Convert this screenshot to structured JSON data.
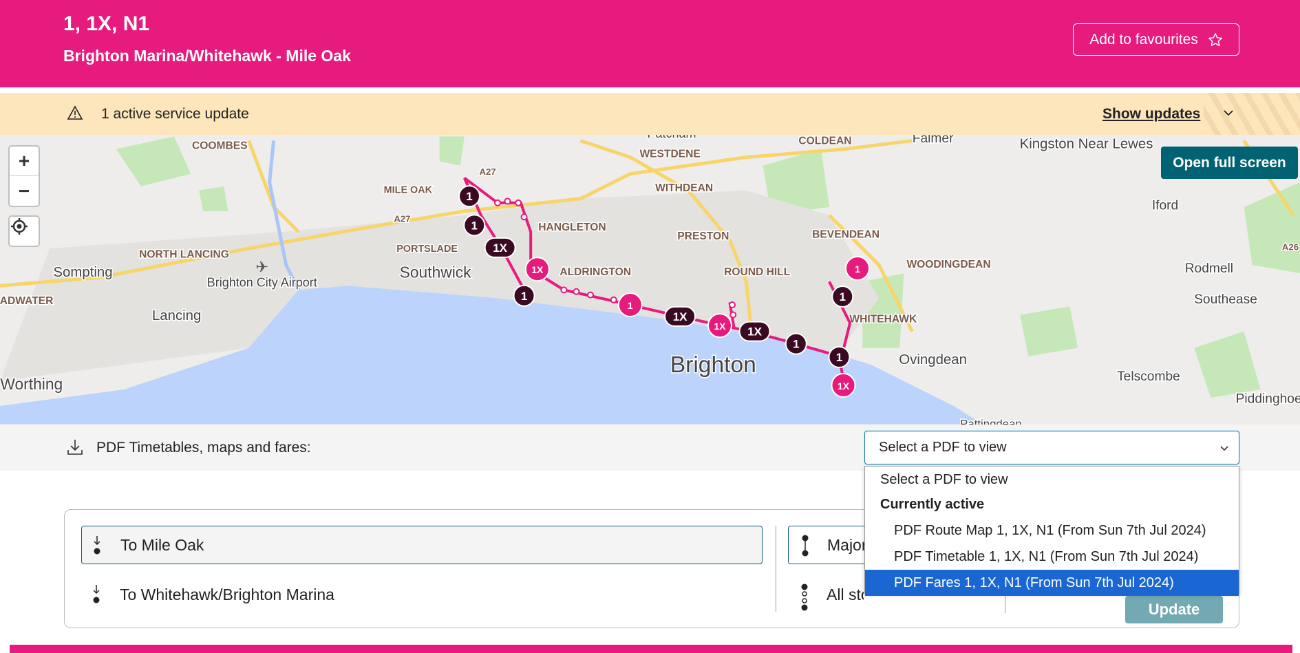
{
  "header": {
    "title": "1, 1X, N1",
    "subtitle": "Brighton Marina/Whitehawk - Mile Oak",
    "favourite_label": "Add to favourites",
    "favourite_icon": "star-outline-icon"
  },
  "alert": {
    "text": "1 active service update",
    "toggle_label": "Show updates",
    "icon": "warning-triangle-icon"
  },
  "map": {
    "fullscreen_label": "Open full screen",
    "zoom_in": "+",
    "zoom_out": "−",
    "places": [
      "Patcham",
      "COLDEAN",
      "Falmer",
      "Kingston Near Lewes",
      "COOMBES",
      "WESTDENE",
      "A27",
      "A27",
      "WITHDEAN",
      "Iford",
      "HANGLETON",
      "PRESTON",
      "BEVENDEAN",
      "NORTH LANCING",
      "Sompting",
      "Brighton City Airport",
      "Southwick",
      "ALDRINGTON",
      "ROUND HILL",
      "WOODINGDEAN",
      "Rodmell",
      "A26",
      "ADWATER",
      "Lancing",
      "Southease",
      "WHITEHAWK",
      "Ovingdean",
      "Brighton",
      "Telscombe",
      "Worthing",
      "Piddinghoe",
      "Pattingdean",
      "MILE OAK",
      "PORTSLADE"
    ],
    "markers": [
      "1",
      "1",
      "1X",
      "1X",
      "1",
      "1",
      "1X",
      "1X",
      "1X",
      "1",
      "1",
      "1",
      "1X",
      "1"
    ],
    "colors": {
      "route": "#e71b7d",
      "marker_dark": "#3a0a22",
      "sea": "#bcd3fb",
      "land": "#eeedeb",
      "green": "#c6e8b8",
      "road": "#f7d56b"
    }
  },
  "pdf": {
    "label": "PDF Timetables, maps and fares:",
    "select_value": "Select a PDF to view",
    "options": {
      "placeholder": "Select a PDF to view",
      "group": "Currently active",
      "items": [
        "PDF Route Map 1, 1X, N1 (From Sun 7th Jul 2024)",
        "PDF Timetable 1, 1X, N1 (From Sun 7th Jul 2024)",
        "PDF Fares 1, 1X, N1 (From Sun 7th Jul 2024)"
      ],
      "selected_index": 2
    }
  },
  "directions": [
    {
      "label": "To Mile Oak",
      "active": true
    },
    {
      "label": "To Whitehawk/Brighton Marina",
      "active": false
    }
  ],
  "stops": [
    {
      "label": "Major stops",
      "visible": "Majo",
      "active": true
    },
    {
      "label": "All stops",
      "visible": "All stops",
      "active": false
    }
  ],
  "update_label": "Update",
  "colors": {
    "brand": "#e71b7d",
    "teal": "#006272",
    "alert_bg": "#fde5bc",
    "selected": "#1a66d2"
  }
}
